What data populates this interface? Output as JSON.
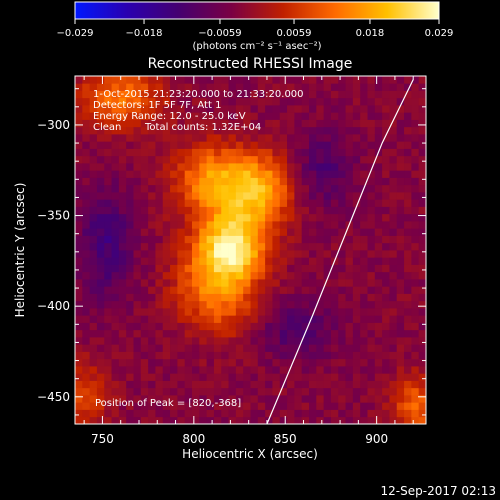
{
  "chart_data": {
    "type": "heatmap",
    "title": "Reconstructed RHESSI Image",
    "xlabel": "Heliocentric X (arcsec)",
    "ylabel": "Heliocentric Y (arcsec)",
    "xlim": [
      735,
      927
    ],
    "ylim": [
      -465,
      -273
    ],
    "x_ticks": [
      750,
      800,
      850,
      900
    ],
    "y_ticks": [
      -300,
      -350,
      -400,
      -450
    ],
    "x_tick_labels": [
      "750",
      "800",
      "850",
      "900"
    ],
    "y_tick_labels": [
      "−300",
      "−350",
      "−400",
      "−450"
    ],
    "colorbar": {
      "min": -0.029,
      "max": 0.029,
      "ticks": [
        -0.029,
        -0.018,
        -0.0059,
        0.0059,
        0.018,
        0.029
      ],
      "tick_labels": [
        "−0.029",
        "−0.018",
        "−0.0059",
        "0.0059",
        "0.018",
        "0.029"
      ],
      "unit_label": "(photons cm⁻² s⁻¹ asec⁻²)",
      "colormap": [
        "#0018ff",
        "#2a00b0",
        "#450070",
        "#7a0044",
        "#c02000",
        "#ff6a00",
        "#ffc000",
        "#ffffcc"
      ]
    },
    "annotations": [
      "1-Oct-2015 21:23:20.000 to 21:33:20.000",
      "Detectors: 1F 5F 7F, Att 1",
      "Energy Range: 12.0 - 25.0 keV",
      "Clean",
      "Total counts: 1.32E+04",
      "Position of Peak = [820,-368]"
    ],
    "peak": [
      820,
      -368
    ],
    "sources": [
      {
        "x": 820,
        "y": -368,
        "amp": 0.029
      },
      {
        "x": 835,
        "y": -335,
        "amp": 0.022
      },
      {
        "x": 808,
        "y": -330,
        "amp": 0.017
      },
      {
        "x": 805,
        "y": -390,
        "amp": 0.01
      },
      {
        "x": 820,
        "y": -402,
        "amp": 0.008
      }
    ],
    "limb_curve": [
      [
        840,
        -465
      ],
      [
        865,
        -405
      ],
      [
        885,
        -355
      ],
      [
        903,
        -310
      ],
      [
        920,
        -275
      ]
    ]
  },
  "footer": {
    "timestamp": "12-Sep-2017 02:13"
  }
}
